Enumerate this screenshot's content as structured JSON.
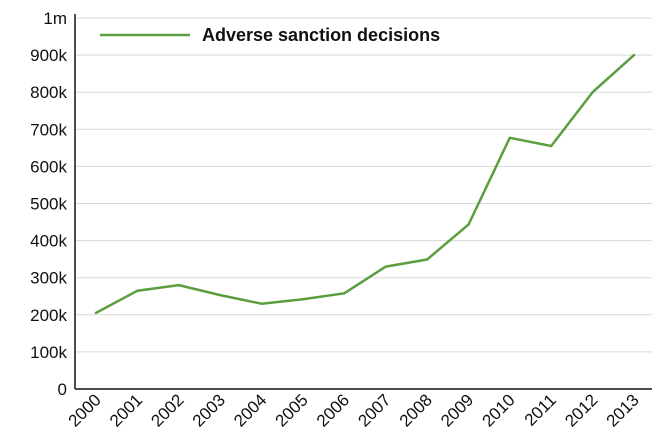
{
  "chart_data": {
    "type": "line",
    "title": "",
    "xlabel": "",
    "ylabel": "",
    "categories": [
      "2000",
      "2001",
      "2002",
      "2003",
      "2004",
      "2005",
      "2006",
      "2007",
      "2008",
      "2009",
      "2010",
      "2011",
      "2012",
      "2013"
    ],
    "series": [
      {
        "name": "Adverse sanction decisions",
        "values": [
          205000,
          265000,
          280000,
          253000,
          230000,
          242000,
          258000,
          330000,
          349000,
          443000,
          677000,
          655000,
          800000,
          900000
        ]
      }
    ],
    "ylim": [
      0,
      1000000
    ],
    "y_ticks": [
      0,
      100000,
      200000,
      300000,
      400000,
      500000,
      600000,
      700000,
      800000,
      900000,
      1000000
    ],
    "y_tick_labels": [
      "0",
      "100k",
      "200k",
      "300k",
      "400k",
      "500k",
      "600k",
      "700k",
      "800k",
      "900k",
      "1m"
    ],
    "grid": true,
    "legend_position": "top-left",
    "colors": {
      "series": "#5a9e3e",
      "grid": "#d9d9d9",
      "axis": "#111111"
    }
  }
}
